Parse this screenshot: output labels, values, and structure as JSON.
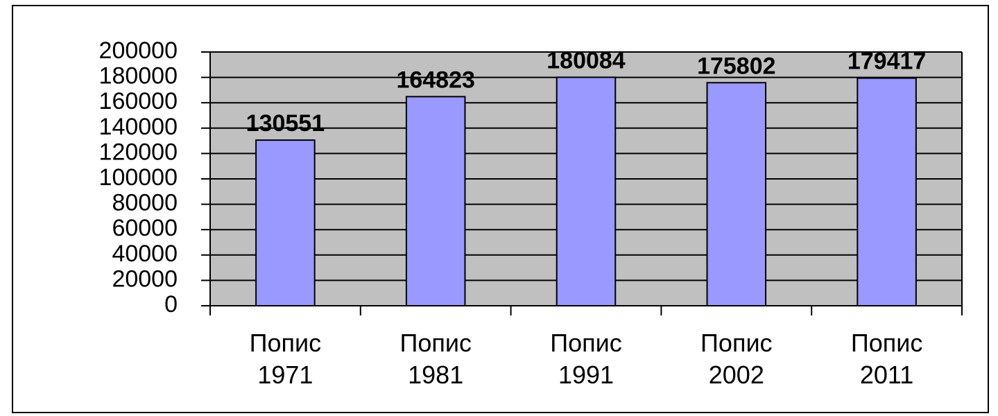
{
  "chart_data": {
    "type": "bar",
    "categories": [
      "Попис 1971",
      "Попис 1981",
      "Попис 1991",
      "Попис 2002",
      "Попис 2011"
    ],
    "values": [
      130551,
      164823,
      180084,
      175802,
      179417
    ],
    "color": "#9999ff",
    "ylim": [
      0,
      200000
    ],
    "yticks": [
      0,
      20000,
      40000,
      60000,
      80000,
      100000,
      120000,
      140000,
      160000,
      180000,
      200000
    ],
    "grid": true
  }
}
